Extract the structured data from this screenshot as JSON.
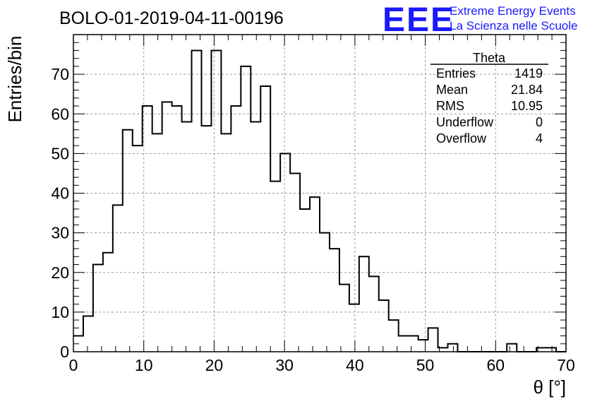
{
  "header": {
    "title": "BOLO-01-2019-04-11-00196"
  },
  "logo": {
    "letters": "EEE",
    "line1": "Extreme Energy Events",
    "line2": "La Scienza nelle Scuole",
    "color": "#1a1aff"
  },
  "stats": {
    "name": "Theta",
    "rows": [
      {
        "label": "Entries",
        "value": "1419"
      },
      {
        "label": "Mean",
        "value": "21.84"
      },
      {
        "label": "RMS",
        "value": "10.95"
      },
      {
        "label": "Underflow",
        "value": "0"
      },
      {
        "label": "Overflow",
        "value": "4"
      }
    ]
  },
  "chart_data": {
    "type": "bar",
    "style": "step-histogram",
    "xlabel": "θ [°]",
    "ylabel": "Entries/bin",
    "xlim": [
      0,
      70
    ],
    "ylim": [
      0,
      80
    ],
    "bin_width": 1.4,
    "grid": true,
    "xticks": [
      0,
      10,
      20,
      30,
      40,
      50,
      60,
      70
    ],
    "yticks": [
      0,
      10,
      20,
      30,
      40,
      50,
      60,
      70
    ],
    "values": [
      4,
      9,
      22,
      25,
      37,
      56,
      52,
      62,
      55,
      63,
      62,
      58,
      76,
      57,
      76,
      55,
      62,
      72,
      58,
      67,
      43,
      50,
      45,
      36,
      39,
      30,
      26,
      17,
      12,
      24,
      19,
      13,
      8,
      4,
      4,
      3,
      6,
      1,
      2,
      0,
      0,
      0,
      0,
      0,
      2,
      0,
      0,
      1,
      1,
      0
    ]
  }
}
